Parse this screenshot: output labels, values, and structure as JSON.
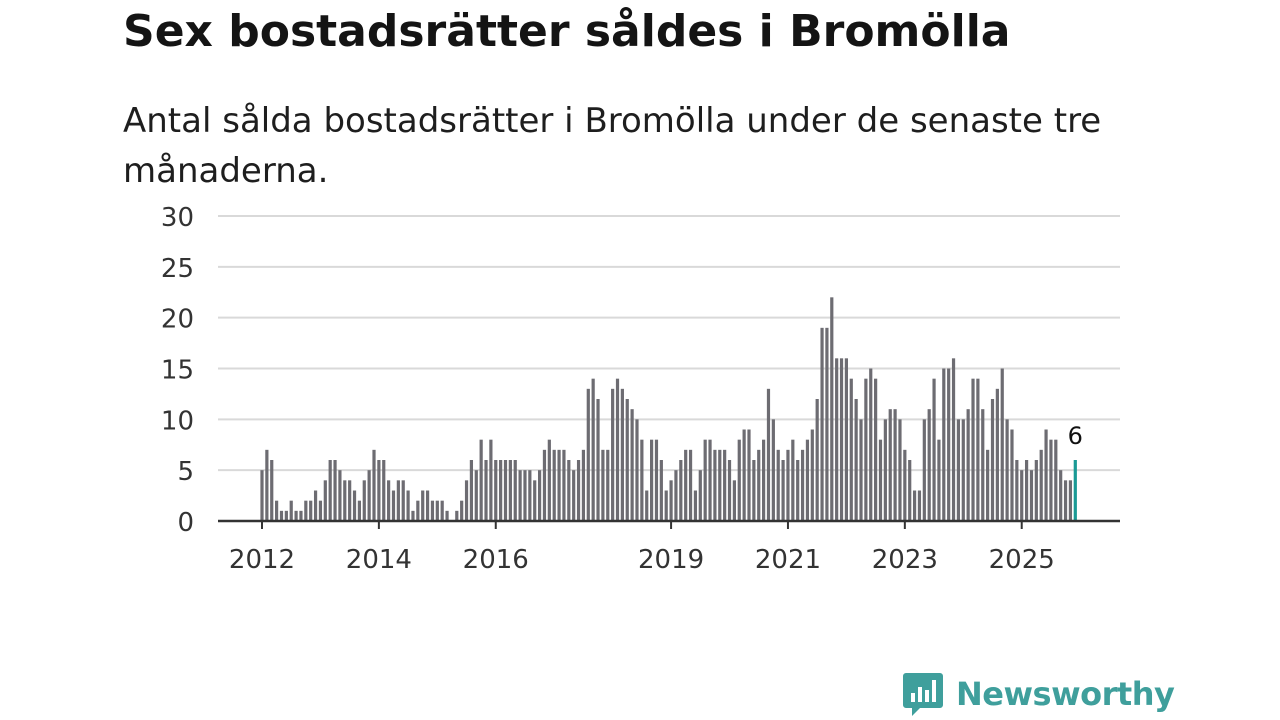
{
  "title": "Sex bostadsrätter såldes i Bromölla",
  "subtitle": "Antal sålda bostadsrätter i Bromölla under de senaste tre månaderna.",
  "brand": {
    "name": "Newsworthy",
    "icon": "newsworthy-logo-icon"
  },
  "colors": {
    "bar": "#6d6c72",
    "highlight": "#1a9a95",
    "grid": "#d9d9d9",
    "axis": "#333333",
    "brand": "#3f9f9c"
  },
  "chart_data": {
    "type": "bar",
    "title": "Sex bostadsrätter såldes i Bromölla",
    "ylabel": "",
    "xlabel": "",
    "ylim": [
      0,
      30
    ],
    "yticks": [
      0,
      5,
      10,
      15,
      20,
      25,
      30
    ],
    "x_start": "2012-01",
    "x_tick_labels": [
      {
        "label": "2012",
        "index": 0
      },
      {
        "label": "2014",
        "index": 24
      },
      {
        "label": "2016",
        "index": 48
      },
      {
        "label": "2019",
        "index": 84
      },
      {
        "label": "2021",
        "index": 108
      },
      {
        "label": "2023",
        "index": 132
      },
      {
        "label": "2025",
        "index": 156
      }
    ],
    "values": [
      5,
      7,
      6,
      2,
      1,
      1,
      2,
      1,
      1,
      2,
      2,
      3,
      2,
      4,
      6,
      6,
      5,
      4,
      4,
      3,
      2,
      4,
      5,
      7,
      6,
      6,
      4,
      3,
      4,
      4,
      3,
      1,
      2,
      3,
      3,
      2,
      2,
      2,
      1,
      0,
      1,
      2,
      4,
      6,
      5,
      8,
      6,
      8,
      6,
      6,
      6,
      6,
      6,
      5,
      5,
      5,
      4,
      5,
      7,
      8,
      7,
      7,
      7,
      6,
      5,
      6,
      7,
      13,
      14,
      12,
      7,
      7,
      13,
      14,
      13,
      12,
      11,
      10,
      8,
      3,
      8,
      8,
      6,
      3,
      4,
      5,
      6,
      7,
      7,
      3,
      5,
      8,
      8,
      7,
      7,
      7,
      6,
      4,
      8,
      9,
      9,
      6,
      7,
      8,
      13,
      10,
      7,
      6,
      7,
      8,
      6,
      7,
      8,
      9,
      12,
      19,
      19,
      22,
      16,
      16,
      16,
      14,
      12,
      10,
      14,
      15,
      14,
      8,
      10,
      11,
      11,
      10,
      7,
      6,
      3,
      3,
      10,
      11,
      14,
      8,
      15,
      15,
      16,
      10,
      10,
      11,
      14,
      14,
      11,
      7,
      12,
      13,
      15,
      10,
      9,
      6,
      5,
      6,
      5,
      6,
      7,
      9,
      8,
      8,
      5,
      4,
      4,
      6
    ],
    "highlight": {
      "index": 167,
      "value": 6,
      "label": "6"
    }
  }
}
